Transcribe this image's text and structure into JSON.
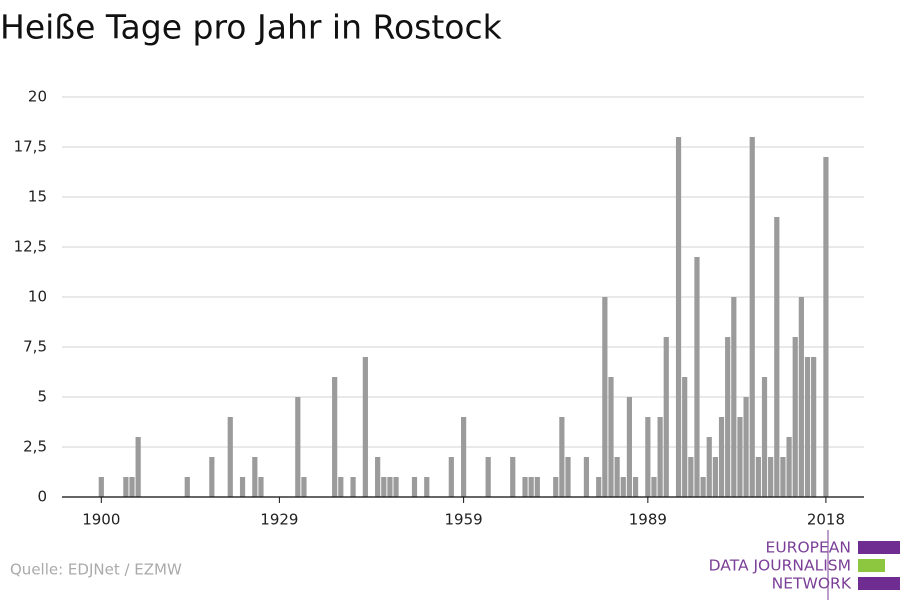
{
  "chart_data": {
    "type": "bar",
    "title": "Heiße Tage pro Jahr in Rostock",
    "source": "Quelle: EDJNet / EZMW",
    "logo": [
      "EUROPEAN",
      "DATA JOURNALISM",
      "NETWORK"
    ],
    "color": "#9b9b9b",
    "grid": true,
    "x": [
      1900,
      1904,
      1905,
      1906,
      1914,
      1918,
      1921,
      1923,
      1925,
      1926,
      1932,
      1933,
      1938,
      1939,
      1941,
      1943,
      1945,
      1946,
      1947,
      1948,
      1951,
      1953,
      1957,
      1959,
      1963,
      1967,
      1969,
      1970,
      1971,
      1974,
      1975,
      1976,
      1979,
      1981,
      1982,
      1983,
      1984,
      1985,
      1986,
      1987,
      1989,
      1990,
      1991,
      1992,
      1994,
      1995,
      1996,
      1997,
      1998,
      1999,
      2000,
      2001,
      2002,
      2003,
      2004,
      2005,
      2006,
      2007,
      2008,
      2009,
      2010,
      2011,
      2012,
      2013,
      2014,
      2015,
      2016,
      2018
    ],
    "values": [
      1,
      1,
      1,
      3,
      1,
      2,
      4,
      1,
      2,
      1,
      5,
      1,
      6,
      1,
      1,
      7,
      2,
      1,
      1,
      1,
      1,
      1,
      2,
      4,
      2,
      2,
      1,
      1,
      1,
      1,
      4,
      2,
      2,
      1,
      10,
      6,
      2,
      1,
      5,
      1,
      4,
      1,
      4,
      8,
      18,
      6,
      2,
      12,
      1,
      3,
      2,
      4,
      8,
      10,
      4,
      5,
      18,
      2,
      6,
      2,
      14,
      2,
      3,
      8,
      10,
      7,
      7,
      17
    ],
    "xlim": [
      1893.6,
      2024.2
    ],
    "xticks": [
      1900,
      1929,
      1959,
      1989,
      2018
    ],
    "ylim": [
      0,
      20
    ],
    "yticks": [
      0,
      {
        "value": 2.5,
        "label": "2,5"
      },
      5,
      {
        "value": 7.5,
        "label": "7,5"
      },
      10,
      {
        "value": 12.5,
        "label": "12,5"
      },
      15,
      {
        "value": 17.5,
        "label": "17,5"
      },
      20
    ]
  }
}
